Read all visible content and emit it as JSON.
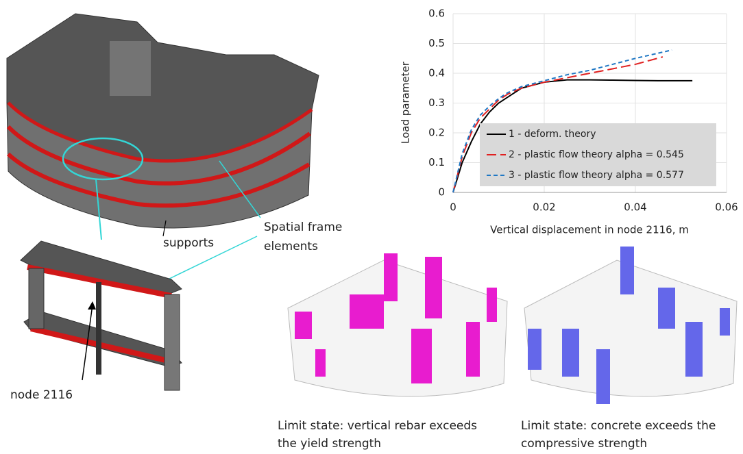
{
  "chart_data": {
    "type": "line",
    "x_label": "Vertical displacement in node 2116, m",
    "y_label": "Load parameter",
    "xlim": [
      0,
      0.06
    ],
    "xticks": [
      0,
      0.02,
      0.04,
      0.06
    ],
    "ylim": [
      0,
      0.6
    ],
    "yticks": [
      0,
      0.1,
      0.2,
      0.3,
      0.4,
      0.5,
      0.6
    ],
    "grid": true,
    "legend": "lower right",
    "series": [
      {
        "name": "1 - deform. theory",
        "color": "#000000",
        "linestyle": "solid",
        "x": [
          0,
          0.002,
          0.004,
          0.006,
          0.008,
          0.01,
          0.012,
          0.015,
          0.02,
          0.025,
          0.03,
          0.035,
          0.04,
          0.045,
          0.05,
          0.0525
        ],
        "values": [
          0,
          0.1,
          0.17,
          0.23,
          0.27,
          0.3,
          0.32,
          0.35,
          0.37,
          0.378,
          0.378,
          0.377,
          0.376,
          0.375,
          0.375,
          0.375
        ]
      },
      {
        "name": "2 - plastic flow theory alpha = 0.545",
        "color": "#e02020",
        "linestyle": "long-dash",
        "x": [
          0,
          0.002,
          0.004,
          0.006,
          0.008,
          0.01,
          0.012,
          0.015,
          0.02,
          0.025,
          0.03,
          0.035,
          0.04,
          0.046
        ],
        "values": [
          0,
          0.12,
          0.2,
          0.25,
          0.28,
          0.31,
          0.33,
          0.35,
          0.37,
          0.385,
          0.4,
          0.415,
          0.43,
          0.455
        ]
      },
      {
        "name": "3 - plastic flow theory alpha = 0.577",
        "color": "#1f77c4",
        "linestyle": "dash",
        "x": [
          0,
          0.002,
          0.004,
          0.006,
          0.008,
          0.01,
          0.012,
          0.015,
          0.02,
          0.025,
          0.03,
          0.035,
          0.04,
          0.048
        ],
        "values": [
          0,
          0.13,
          0.21,
          0.26,
          0.29,
          0.315,
          0.335,
          0.355,
          0.375,
          0.395,
          0.41,
          0.43,
          0.45,
          0.478
        ]
      }
    ]
  },
  "annotations": {
    "supports": "supports",
    "frame_line1": "Spatial frame",
    "frame_line2": "elements",
    "node": "node 2116"
  },
  "captions": [
    {
      "line1": "Limit state: vertical rebar exceeds",
      "line2": " the yield strength"
    },
    {
      "line1": "Limit state: concrete exceeds the",
      "line2": "compressive strength"
    }
  ]
}
